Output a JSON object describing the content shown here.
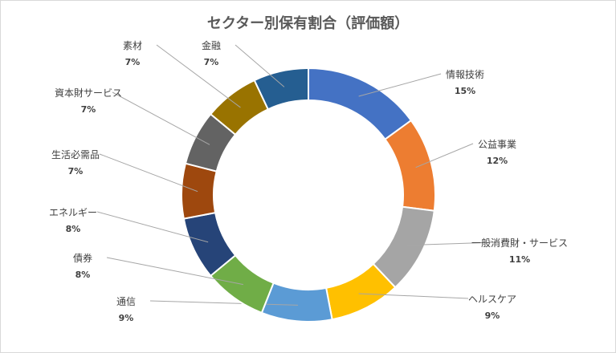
{
  "chart_data": {
    "type": "doughnut",
    "title": "セクター別保有割合（評価額）",
    "legend": "none",
    "data_labels": "outside-with-leader-lines",
    "slices": [
      {
        "label": "情報技術",
        "value": 15,
        "value_label": "15%",
        "color": "#4472C4"
      },
      {
        "label": "公益事業",
        "value": 12,
        "value_label": "12%",
        "color": "#ED7D31"
      },
      {
        "label": "一般消費財・サービス",
        "value": 11,
        "value_label": "11%",
        "color": "#A5A5A5"
      },
      {
        "label": "ヘルスケア",
        "value": 9,
        "value_label": "9%",
        "color": "#FFC000"
      },
      {
        "label": "通信",
        "value": 9,
        "value_label": "9%",
        "color": "#5B9BD5"
      },
      {
        "label": "債券",
        "value": 8,
        "value_label": "8%",
        "color": "#70AD47"
      },
      {
        "label": "エネルギー",
        "value": 8,
        "value_label": "8%",
        "color": "#264478"
      },
      {
        "label": "生活必需品",
        "value": 7,
        "value_label": "7%",
        "color": "#9E480E"
      },
      {
        "label": "資本財サービス",
        "value": 7,
        "value_label": "7%",
        "color": "#636363"
      },
      {
        "label": "素材",
        "value": 7,
        "value_label": "7%",
        "color": "#997300"
      },
      {
        "label": "金融",
        "value": 7,
        "value_label": "7%",
        "color": "#255E91"
      }
    ]
  }
}
